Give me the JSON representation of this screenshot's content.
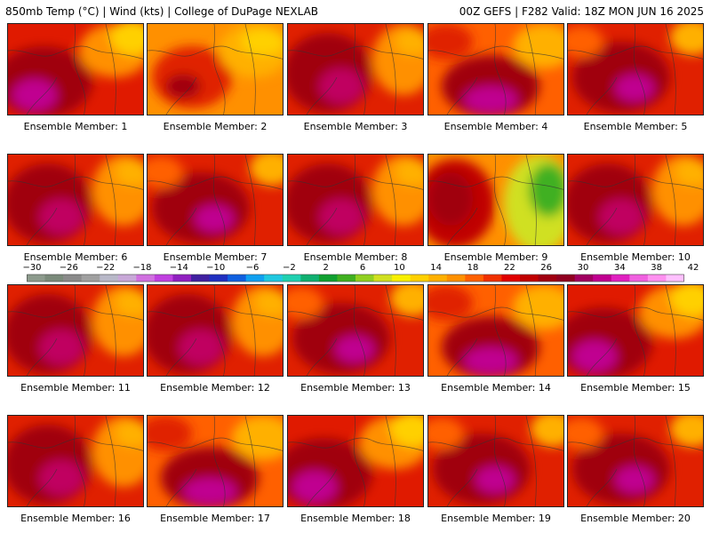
{
  "header": {
    "left": "850mb Temp (°C) | Wind (kts) | College of DuPage NEXLAB",
    "right": "00Z GEFS | F282 Valid: 18Z MON JUN 16 2025"
  },
  "panel_label_prefix": "Ensemble Member: ",
  "members": [
    1,
    2,
    3,
    4,
    5,
    6,
    7,
    8,
    9,
    10,
    11,
    12,
    13,
    14,
    15,
    16,
    17,
    18,
    19,
    20
  ],
  "colorbar": {
    "tick_labels": [
      "−30",
      "−26",
      "−22",
      "−18",
      "−14",
      "−10",
      "−6",
      "−2",
      "2",
      "6",
      "10",
      "14",
      "18",
      "22",
      "26",
      "30",
      "34",
      "38",
      "42"
    ],
    "colors": [
      "#8c9a8c",
      "#7a8a7a",
      "#8a8a8a",
      "#a0a0a0",
      "#b8b8c8",
      "#c8a8d8",
      "#d070e0",
      "#c040e0",
      "#9020c0",
      "#4020a0",
      "#2030c0",
      "#1060e0",
      "#10a0f0",
      "#20c8e0",
      "#20d0b0",
      "#10b070",
      "#10a030",
      "#40b020",
      "#90d020",
      "#d0e020",
      "#f8f000",
      "#ffd000",
      "#ffb000",
      "#ff9000",
      "#ff6000",
      "#f03000",
      "#e00000",
      "#c00000",
      "#a00010",
      "#900020",
      "#a00060",
      "#c00090",
      "#e020c0",
      "#f060e0",
      "#ff90f0",
      "#ffc0ff"
    ]
  },
  "member_styles": {
    "1": "hot-sw",
    "2": "warm",
    "3": "hot-w",
    "4": "hot-s",
    "5": "hot-c",
    "6": "hot-w",
    "7": "hot-c",
    "8": "hot-w",
    "9": "split",
    "10": "hot-w",
    "11": "hot-w",
    "12": "hot-w",
    "13": "hot-c",
    "14": "hot-s",
    "15": "hot-sw",
    "16": "hot-w",
    "17": "hot-s",
    "18": "hot-sw",
    "19": "hot-c",
    "20": "hot-c"
  }
}
